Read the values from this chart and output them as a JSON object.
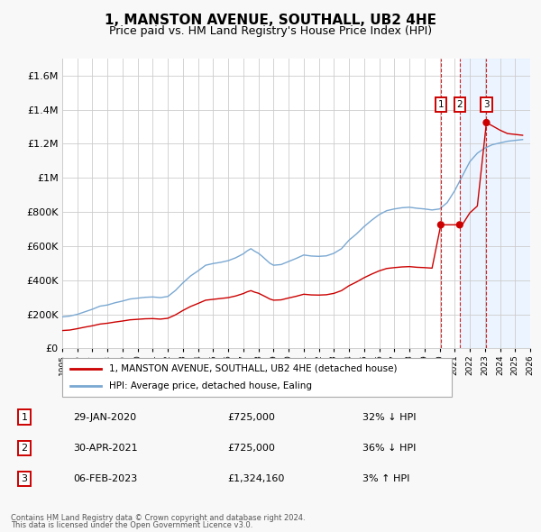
{
  "title": "1, MANSTON AVENUE, SOUTHALL, UB2 4HE",
  "subtitle": "Price paid vs. HM Land Registry's House Price Index (HPI)",
  "title_fontsize": 11,
  "subtitle_fontsize": 9,
  "ytick_values": [
    0,
    200000,
    400000,
    600000,
    800000,
    1000000,
    1200000,
    1400000,
    1600000
  ],
  "ylim": [
    0,
    1700000
  ],
  "xlim_start": 1995.0,
  "xlim_end": 2026.0,
  "background_color": "#f8f8f8",
  "plot_bg_color": "#ffffff",
  "grid_color": "#cccccc",
  "red_line_color": "#cc0000",
  "blue_line_color": "#7aa8d2",
  "shade_color": "#ddeeff",
  "marker_color": "#cc0000",
  "vline_color": "#cc0000",
  "transactions": [
    {
      "num": 1,
      "date": "29-JAN-2020",
      "price": 725000,
      "x_year": 2020.08,
      "pct": "32%",
      "dir": "↓",
      "label": "32% ↓ HPI"
    },
    {
      "num": 2,
      "date": "30-APR-2021",
      "price": 725000,
      "x_year": 2021.33,
      "pct": "36%",
      "dir": "↓",
      "label": "36% ↓ HPI"
    },
    {
      "num": 3,
      "date": "06-FEB-2023",
      "price": 1324160,
      "x_year": 2023.1,
      "pct": "3%",
      "dir": "↑",
      "label": "3% ↑ HPI"
    }
  ],
  "legend_label_red": "1, MANSTON AVENUE, SOUTHALL, UB2 4HE (detached house)",
  "legend_label_blue": "HPI: Average price, detached house, Ealing",
  "footer_line1": "Contains HM Land Registry data © Crown copyright and database right 2024.",
  "footer_line2": "This data is licensed under the Open Government Licence v3.0.",
  "hpi_years": [
    1995,
    1995.5,
    1996,
    1996.5,
    1997,
    1997.5,
    1998,
    1998.5,
    1999,
    1999.5,
    2000,
    2000.5,
    2001,
    2001.5,
    2002,
    2002.5,
    2003,
    2003.5,
    2004,
    2004.5,
    2005,
    2005.5,
    2006,
    2006.5,
    2007,
    2007.25,
    2007.5,
    2007.75,
    2008,
    2008.25,
    2008.5,
    2008.75,
    2009,
    2009.5,
    2010,
    2010.5,
    2011,
    2011.5,
    2012,
    2012.5,
    2013,
    2013.5,
    2014,
    2014.5,
    2015,
    2015.5,
    2016,
    2016.5,
    2017,
    2017.5,
    2018,
    2018.5,
    2019,
    2019.5,
    2020,
    2020.5,
    2021,
    2021.5,
    2022,
    2022.5,
    2023,
    2023.5,
    2024,
    2024.5,
    2025,
    2025.5
  ],
  "hpi_values": [
    185000,
    190000,
    200000,
    215000,
    230000,
    248000,
    255000,
    268000,
    278000,
    290000,
    295000,
    300000,
    302000,
    298000,
    305000,
    340000,
    385000,
    425000,
    455000,
    488000,
    498000,
    505000,
    515000,
    532000,
    555000,
    572000,
    585000,
    570000,
    558000,
    540000,
    520000,
    500000,
    488000,
    492000,
    510000,
    528000,
    548000,
    542000,
    540000,
    543000,
    558000,
    585000,
    635000,
    672000,
    715000,
    752000,
    785000,
    808000,
    818000,
    825000,
    828000,
    822000,
    818000,
    812000,
    818000,
    855000,
    925000,
    1010000,
    1095000,
    1145000,
    1175000,
    1195000,
    1205000,
    1215000,
    1220000,
    1225000
  ],
  "prop_years": [
    1995,
    1995.5,
    1996,
    1996.5,
    1997,
    1997.5,
    1998,
    1998.5,
    1999,
    1999.5,
    2000,
    2000.5,
    2001,
    2001.5,
    2002,
    2002.5,
    2003,
    2003.5,
    2004,
    2004.5,
    2005,
    2005.5,
    2006,
    2006.5,
    2007,
    2007.25,
    2007.5,
    2007.75,
    2008,
    2008.25,
    2008.5,
    2008.75,
    2009,
    2009.5,
    2010,
    2010.5,
    2011,
    2011.5,
    2012,
    2012.5,
    2013,
    2013.5,
    2014,
    2014.5,
    2015,
    2015.5,
    2016,
    2016.5,
    2017,
    2017.5,
    2018,
    2018.5,
    2019,
    2019.5,
    2020.08,
    2020.5,
    2021.33,
    2021.5,
    2022,
    2022.5,
    2023.1,
    2023.5,
    2024,
    2024.5,
    2025,
    2025.5
  ],
  "prop_values": [
    105000,
    108000,
    116000,
    125000,
    133000,
    143000,
    148000,
    155000,
    161000,
    168000,
    171000,
    174000,
    175000,
    172000,
    177000,
    197000,
    223000,
    246000,
    264000,
    283000,
    288000,
    293000,
    298000,
    308000,
    322000,
    332000,
    339000,
    330000,
    324000,
    313000,
    302000,
    290000,
    283000,
    285000,
    296000,
    306000,
    318000,
    314000,
    313000,
    315000,
    323000,
    339000,
    368000,
    390000,
    415000,
    436000,
    455000,
    469000,
    474000,
    478000,
    480000,
    476000,
    474000,
    471000,
    725000,
    725000,
    725000,
    725000,
    795000,
    835000,
    1324160,
    1305000,
    1280000,
    1260000,
    1255000,
    1250000
  ]
}
